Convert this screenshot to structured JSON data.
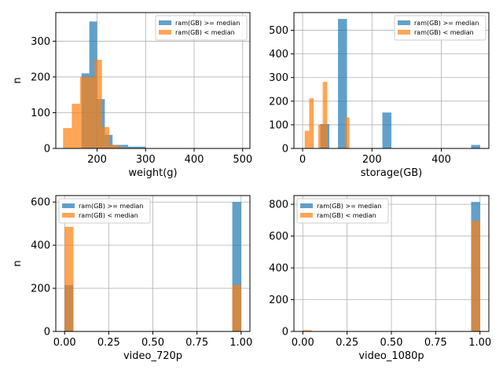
{
  "chart_data": [
    {
      "type": "bar",
      "subtype": "histogram",
      "xlabel": "weight(g)",
      "ylabel": "n",
      "xlim": [
        115,
        515
      ],
      "ylim": [
        0,
        380
      ],
      "xticks": [
        200,
        300,
        400,
        500
      ],
      "yticks": [
        0,
        100,
        200,
        300
      ],
      "grid": true,
      "legend": "top-right",
      "series": [
        {
          "name": "ram(GB) >= median",
          "color": "#1f77b4",
          "bins": [
            [
              150,
              168,
              0
            ],
            [
              168,
              184,
              210
            ],
            [
              184,
              200,
              355
            ],
            [
              200,
              216,
              138
            ],
            [
              216,
              232,
              38
            ],
            [
              232,
              248,
              10
            ],
            [
              248,
              264,
              10
            ],
            [
              264,
              300,
              5
            ]
          ]
        },
        {
          "name": "ram(GB) < median",
          "color": "#ff7f0e",
          "bins": [
            [
              130,
              148,
              57
            ],
            [
              148,
              165,
              125
            ],
            [
              165,
              180,
              200
            ],
            [
              180,
              195,
              200
            ],
            [
              195,
              210,
              248
            ],
            [
              210,
              225,
              60
            ],
            [
              225,
              240,
              10
            ],
            [
              240,
              255,
              5
            ]
          ]
        }
      ]
    },
    {
      "type": "bar",
      "subtype": "histogram",
      "xlabel": "storage(GB)",
      "ylabel": "",
      "xlim": [
        -25,
        537
      ],
      "ylim": [
        0,
        575
      ],
      "xticks": [
        0,
        200,
        400
      ],
      "yticks": [
        0,
        100,
        200,
        300,
        400,
        500
      ],
      "grid": true,
      "legend": "top-right",
      "series": [
        {
          "name": "ram(GB) >= median",
          "color": "#1f77b4",
          "bins": [
            [
              51,
              77,
              103
            ],
            [
              102,
              128,
              548
            ],
            [
              230,
              256,
              152
            ],
            [
              486,
              512,
              15
            ]
          ]
        },
        {
          "name": "ram(GB) < median",
          "color": "#ff7f0e",
          "bins": [
            [
              6,
              19,
              75
            ],
            [
              19,
              32,
              212
            ],
            [
              45,
              58,
              100
            ],
            [
              58,
              71,
              282
            ],
            [
              109,
              122,
              0
            ],
            [
              122,
              135,
              131
            ]
          ]
        }
      ]
    },
    {
      "type": "bar",
      "subtype": "histogram",
      "xlabel": "video_720p",
      "ylabel": "n",
      "xlim": [
        -0.05,
        1.05
      ],
      "ylim": [
        0,
        630
      ],
      "xticks": [
        0.0,
        0.25,
        0.5,
        0.75,
        1.0
      ],
      "xtick_labels": [
        "0.00",
        "0.25",
        "0.50",
        "0.75",
        "1.00"
      ],
      "yticks": [
        0,
        200,
        400,
        600
      ],
      "grid": true,
      "legend": "top-left",
      "series": [
        {
          "name": "ram(GB) >= median",
          "color": "#1f77b4",
          "bins": [
            [
              0,
              0.05,
              215
            ],
            [
              0.95,
              1,
              600
            ]
          ]
        },
        {
          "name": "ram(GB) < median",
          "color": "#ff7f0e",
          "bins": [
            [
              0,
              0.05,
              485
            ],
            [
              0.95,
              1,
              215
            ]
          ]
        }
      ]
    },
    {
      "type": "bar",
      "subtype": "histogram",
      "xlabel": "video_1080p",
      "ylabel": "",
      "xlim": [
        -0.05,
        1.05
      ],
      "ylim": [
        0,
        855
      ],
      "xticks": [
        0.0,
        0.25,
        0.5,
        0.75,
        1.0
      ],
      "xtick_labels": [
        "0.00",
        "0.25",
        "0.50",
        "0.75",
        "1.00"
      ],
      "yticks": [
        0,
        200,
        400,
        600,
        800
      ],
      "grid": true,
      "legend": "top-left",
      "series": [
        {
          "name": "ram(GB) >= median",
          "color": "#1f77b4",
          "bins": [
            [
              0,
              0.05,
              0
            ],
            [
              0.95,
              1,
              815
            ]
          ]
        },
        {
          "name": "ram(GB) < median",
          "color": "#ff7f0e",
          "bins": [
            [
              0,
              0.05,
              8
            ],
            [
              0.95,
              1,
              695
            ]
          ]
        }
      ]
    }
  ]
}
